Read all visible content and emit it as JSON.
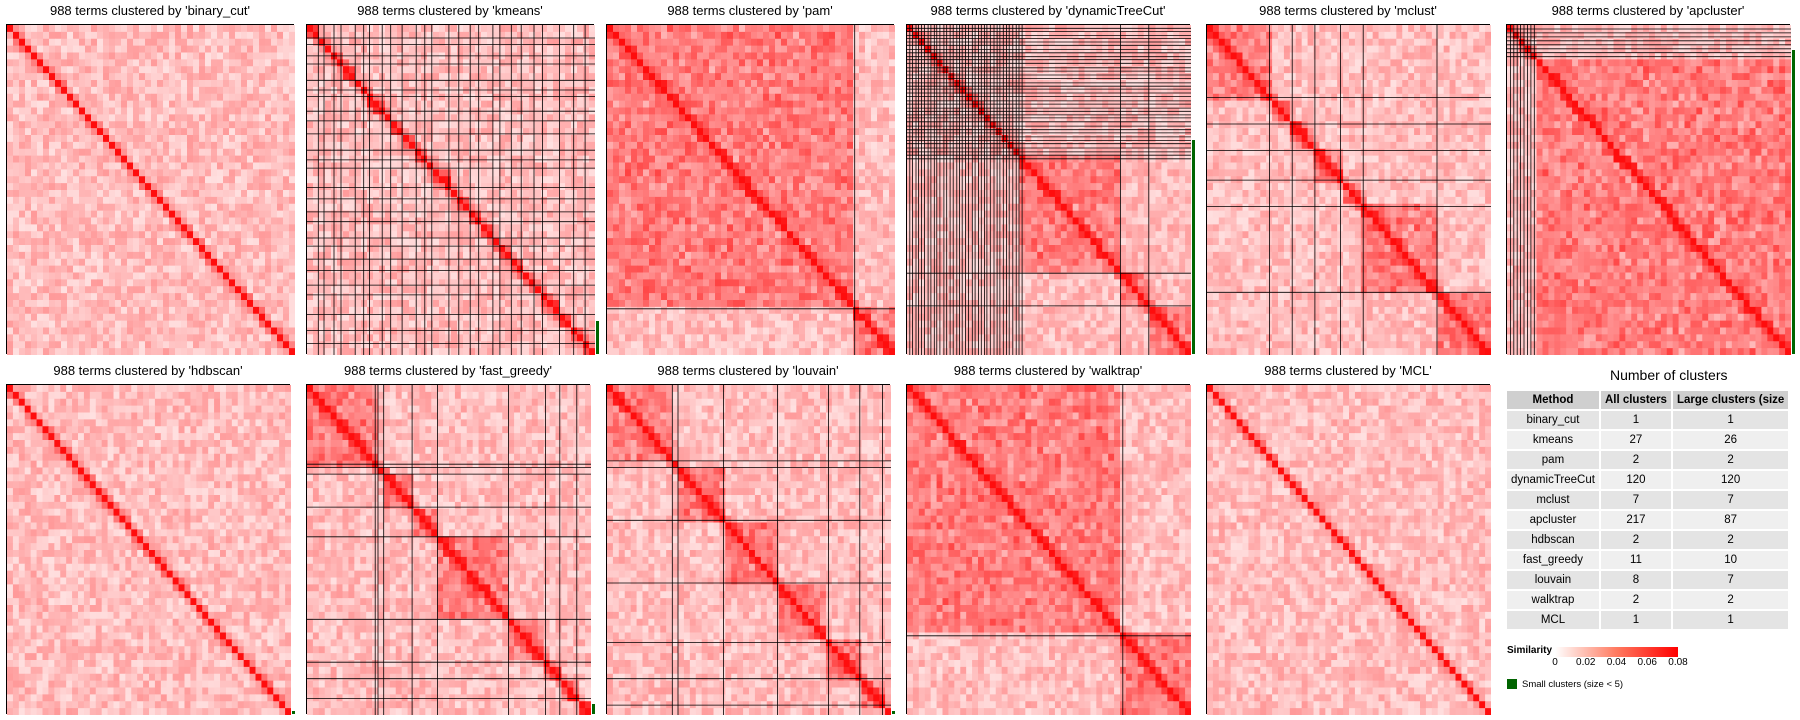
{
  "colors": {
    "high": "#ff0000",
    "low": "#ffffff",
    "small_cluster": "#006400",
    "border": "#000000"
  },
  "chart_data": [
    {
      "type": "heatmap",
      "title": "988 terms clustered by 'binary_cut'",
      "method": "binary_cut",
      "n_terms": 988,
      "n_clusters": 1,
      "blocks": [
        1
      ],
      "small_clusters_shown": true
    },
    {
      "type": "heatmap",
      "title": "988 terms clustered by 'kmeans'",
      "method": "kmeans",
      "n_terms": 988,
      "n_clusters": 27,
      "blocks": [
        0.04,
        0.02,
        0.035,
        0.025,
        0.05,
        0.03,
        0.02,
        0.045,
        0.03,
        0.04,
        0.05,
        0.03,
        0.025,
        0.06,
        0.035,
        0.04,
        0.03,
        0.05,
        0.025,
        0.04,
        0.035,
        0.045,
        0.03,
        0.06,
        0.05,
        0.04,
        0.035
      ],
      "small_clusters_shown": true
    },
    {
      "type": "heatmap",
      "title": "988 terms clustered by 'pam'",
      "method": "pam",
      "n_terms": 988,
      "n_clusters": 2,
      "blocks": [
        0.86,
        0.14
      ],
      "small_clusters_shown": false
    },
    {
      "type": "heatmap",
      "title": "988 terms clustered by 'dynamicTreeCut'",
      "method": "dynamicTreeCut",
      "n_terms": 988,
      "n_clusters": 120,
      "blocks": [
        0.01,
        0.01,
        0.012,
        0.009,
        0.011,
        0.01,
        0.013,
        0.01,
        0.012,
        0.009,
        0.011,
        0.014,
        0.01,
        0.012,
        0.011,
        0.013,
        0.01,
        0.009,
        0.012,
        0.011,
        0.013,
        0.01,
        0.012,
        0.01,
        0.011,
        0.009,
        0.012,
        0.013,
        0.011,
        0.01,
        0.012,
        0.011,
        0.01,
        0.013,
        0.012,
        0.01,
        0.011,
        0.35,
        0.1,
        0.15
      ],
      "small_clusters_shown": true
    },
    {
      "type": "heatmap",
      "title": "988 terms clustered by 'mclust'",
      "method": "mclust",
      "n_terms": 988,
      "n_clusters": 7,
      "blocks": [
        0.22,
        0.08,
        0.08,
        0.09,
        0.08,
        0.26,
        0.19
      ],
      "small_clusters_shown": false
    },
    {
      "type": "heatmap",
      "title": "988 terms clustered by 'apcluster'",
      "method": "apcluster",
      "n_terms": 988,
      "n_clusters": 217,
      "blocks": [
        0.012,
        0.012,
        0.012,
        0.012,
        0.012,
        0.012,
        0.012,
        0.012,
        0.904
      ],
      "small_clusters_shown": true
    },
    {
      "type": "heatmap",
      "title": "988 terms clustered by 'hdbscan'",
      "method": "hdbscan",
      "n_terms": 988,
      "n_clusters": 2,
      "blocks": [
        1
      ],
      "small_clusters_shown": true
    },
    {
      "type": "heatmap",
      "title": "988 terms clustered by 'fast_greedy'",
      "method": "fast_greedy",
      "n_terms": 988,
      "n_clusters": 11,
      "blocks": [
        0.24,
        0.01,
        0.02,
        0.1,
        0.09,
        0.25,
        0.13,
        0.05,
        0.06,
        0.05
      ],
      "small_clusters_shown": true
    },
    {
      "type": "heatmap",
      "title": "988 terms clustered by 'louvain'",
      "method": "louvain",
      "n_terms": 988,
      "n_clusters": 8,
      "blocks": [
        0.23,
        0.02,
        0.16,
        0.19,
        0.18,
        0.11,
        0.08,
        0.03
      ],
      "small_clusters_shown": true
    },
    {
      "type": "heatmap",
      "title": "988 terms clustered by 'walktrap'",
      "method": "walktrap",
      "n_terms": 988,
      "n_clusters": 2,
      "blocks": [
        0.76,
        0.24
      ],
      "small_clusters_shown": false
    },
    {
      "type": "heatmap",
      "title": "988 terms clustered by 'MCL'",
      "method": "MCL",
      "n_terms": 988,
      "n_clusters": 1,
      "blocks": [
        1
      ],
      "small_clusters_shown": false
    },
    {
      "type": "table",
      "title": "Number of clusters",
      "columns": [
        "Method",
        "All clusters",
        "Large clusters (size"
      ],
      "rows": [
        [
          "binary_cut",
          "1",
          "1"
        ],
        [
          "kmeans",
          "27",
          "26"
        ],
        [
          "pam",
          "2",
          "2"
        ],
        [
          "dynamicTreeCut",
          "120",
          "120"
        ],
        [
          "mclust",
          "7",
          "7"
        ],
        [
          "apcluster",
          "217",
          "87"
        ],
        [
          "hdbscan",
          "2",
          "2"
        ],
        [
          "fast_greedy",
          "11",
          "10"
        ],
        [
          "louvain",
          "8",
          "7"
        ],
        [
          "walktrap",
          "2",
          "2"
        ],
        [
          "MCL",
          "1",
          "1"
        ]
      ]
    }
  ],
  "legend": {
    "title": "Similarity",
    "ticks": [
      "0",
      "0.02",
      "0.04",
      "0.06",
      "0.08"
    ],
    "tick_values": [
      0,
      0.02,
      0.04,
      0.06,
      0.08
    ],
    "small_clusters_label": "Small clusters (size < 5)"
  }
}
